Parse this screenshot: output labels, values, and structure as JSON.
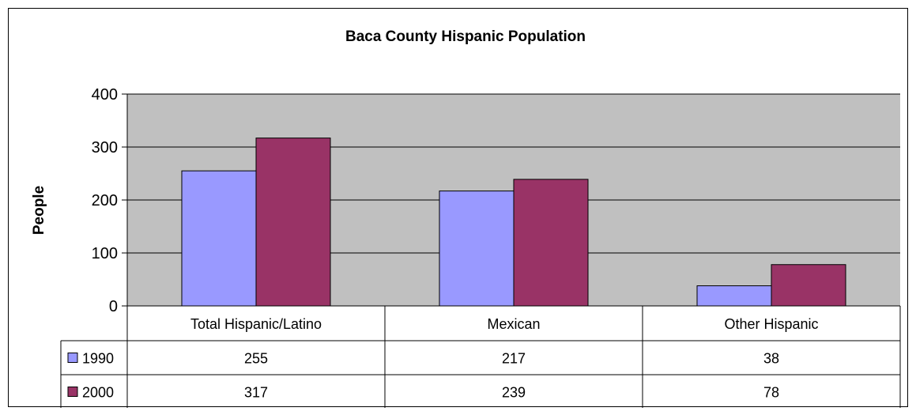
{
  "chart_data": {
    "type": "bar",
    "title": "Baca County Hispanic Population",
    "ylabel": "People",
    "xlabel": "",
    "ylim": [
      0,
      400
    ],
    "yticks": [
      0,
      100,
      200,
      300,
      400
    ],
    "grid": true,
    "legend": "data-table",
    "categories": [
      "Total Hispanic/Latino",
      "Mexican",
      "Other Hispanic"
    ],
    "series": [
      {
        "name": "1990",
        "values": [
          255,
          217,
          38
        ],
        "color": "#9999ff"
      },
      {
        "name": "2000",
        "values": [
          317,
          239,
          78
        ],
        "color": "#993366"
      }
    ],
    "plot_background": "#c0c0c0"
  }
}
